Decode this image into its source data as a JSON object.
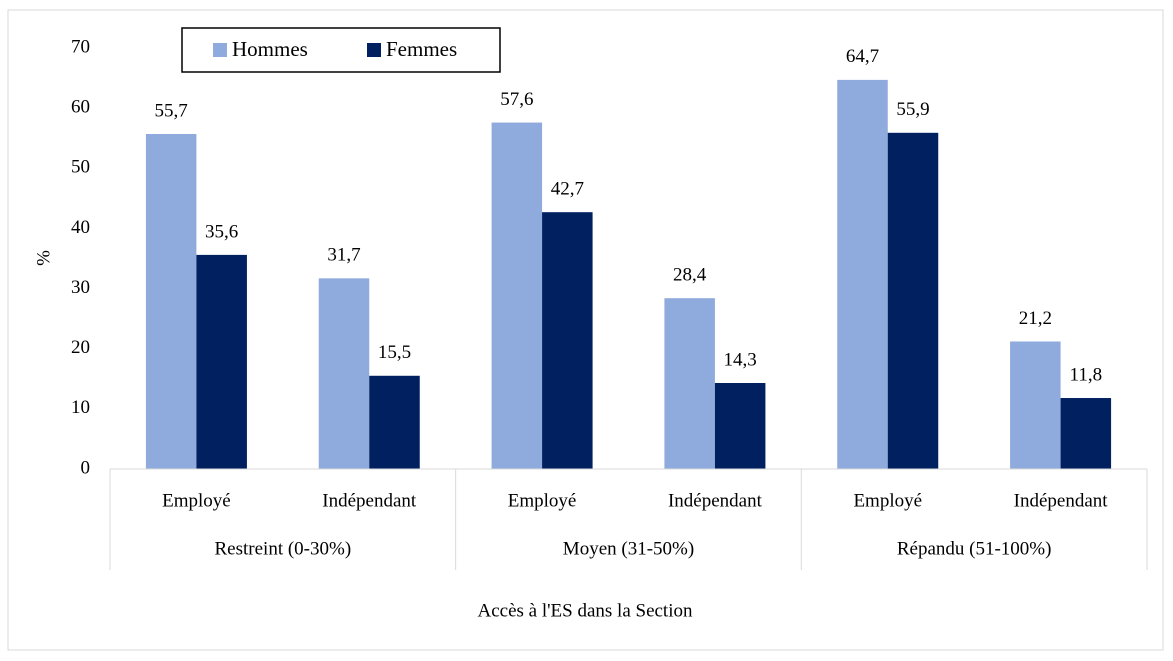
{
  "chart_data": {
    "type": "bar",
    "categories": [
      "Employé",
      "Indépendant",
      "Employé",
      "Indépendant",
      "Employé",
      "Indépendant"
    ],
    "groups": [
      "Restreint (0-30%)",
      "Moyen (31-50%)",
      "Répandu (51-100%)"
    ],
    "series": [
      {
        "name": "Hommes",
        "color": "#8faadc",
        "values": [
          55.7,
          31.7,
          57.6,
          28.4,
          64.7,
          21.2
        ],
        "value_labels": [
          "55,7",
          "31,7",
          "57,6",
          "28,4",
          "64,7",
          "21,2"
        ]
      },
      {
        "name": "Femmes",
        "color": "#002060",
        "values": [
          35.6,
          15.5,
          42.7,
          14.3,
          55.9,
          11.8
        ],
        "value_labels": [
          "35,6",
          "15,5",
          "42,7",
          "14,3",
          "55,9",
          "11,8"
        ]
      }
    ],
    "x_label": "Accès à l'ES dans la Section",
    "y_label": "%",
    "ylim": [
      0,
      70
    ],
    "yticks": [
      0,
      10,
      20,
      30,
      40,
      50,
      60,
      70
    ],
    "legend": "top-left"
  }
}
